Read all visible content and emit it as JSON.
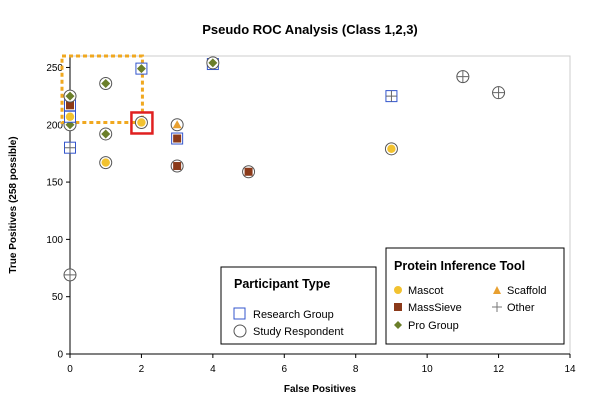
{
  "chart_data": {
    "type": "scatter",
    "title": "Pseudo ROC Analysis (Class 1,2,3)",
    "xlabel": "False Positives",
    "ylabel": "True Positives (258 possible)",
    "xlim": [
      0,
      14
    ],
    "ylim": [
      0,
      260
    ],
    "x_ticks": [
      "0",
      "2",
      "4",
      "6",
      "8",
      "10",
      "12",
      "14"
    ],
    "y_ticks": [
      "0",
      "50",
      "100",
      "150",
      "200",
      "250"
    ],
    "colors": {
      "mascot": "#f2c230",
      "masssieve": "#8b3a1a",
      "progroup": "#6b7f2a",
      "scaffold": "#e8a030",
      "research": "#3355cc",
      "study": "#555555",
      "highlight_dashed": "#f0a820",
      "highlight_box": "#e02020"
    },
    "legends": {
      "participant_type": {
        "title": "Participant Type",
        "items": [
          {
            "label": "Research Group",
            "marker": "square"
          },
          {
            "label": "Study Respondent",
            "marker": "circle"
          }
        ]
      },
      "tool": {
        "title": "Protein Inference Tool",
        "items": [
          {
            "label": "Mascot",
            "marker": "dot",
            "color": "#f2c230"
          },
          {
            "label": "Scaffold",
            "marker": "triangle",
            "color": "#e8a030"
          },
          {
            "label": "MassSieve",
            "marker": "sqfill",
            "color": "#8b3a1a"
          },
          {
            "label": "Other",
            "marker": "plus",
            "color": "#777777"
          },
          {
            "label": "Pro Group",
            "marker": "diamond",
            "color": "#6b7f2a"
          }
        ]
      }
    },
    "points": [
      {
        "x": 0,
        "y": 69,
        "participant": "study",
        "tool": "other"
      },
      {
        "x": 0,
        "y": 180,
        "participant": "research",
        "tool": "other"
      },
      {
        "x": 0,
        "y": 200,
        "participant": "study",
        "tool": "progroup"
      },
      {
        "x": 0,
        "y": 207,
        "participant": "research",
        "tool": "mascot"
      },
      {
        "x": 0,
        "y": 217,
        "participant": "research",
        "tool": "masssieve"
      },
      {
        "x": 0,
        "y": 225,
        "participant": "study",
        "tool": "progroup"
      },
      {
        "x": 1,
        "y": 167,
        "participant": "study",
        "tool": "mascot"
      },
      {
        "x": 1,
        "y": 192,
        "participant": "study",
        "tool": "progroup"
      },
      {
        "x": 1,
        "y": 236,
        "participant": "study",
        "tool": "progroup"
      },
      {
        "x": 2,
        "y": 202,
        "participant": "study",
        "tool": "mascot"
      },
      {
        "x": 2,
        "y": 249,
        "participant": "research",
        "tool": "progroup"
      },
      {
        "x": 3,
        "y": 200,
        "participant": "study",
        "tool": "scaffold"
      },
      {
        "x": 3,
        "y": 188,
        "participant": "research",
        "tool": "masssieve"
      },
      {
        "x": 3,
        "y": 164,
        "participant": "study",
        "tool": "masssieve"
      },
      {
        "x": 4,
        "y": 253,
        "participant": "research",
        "tool": "progroup"
      },
      {
        "x": 4,
        "y": 254,
        "participant": "study",
        "tool": "progroup"
      },
      {
        "x": 5,
        "y": 159,
        "participant": "study",
        "tool": "masssieve"
      },
      {
        "x": 9,
        "y": 225,
        "participant": "research",
        "tool": "other"
      },
      {
        "x": 9,
        "y": 179,
        "participant": "study",
        "tool": "mascot"
      },
      {
        "x": 11,
        "y": 242,
        "participant": "study",
        "tool": "other"
      },
      {
        "x": 12,
        "y": 228,
        "participant": "study",
        "tool": "other"
      }
    ],
    "highlight_dashed_region": {
      "x": [
        0,
        2
      ],
      "y": [
        202,
        260
      ]
    },
    "highlight_box_point": {
      "x": 2,
      "y": 202
    }
  }
}
